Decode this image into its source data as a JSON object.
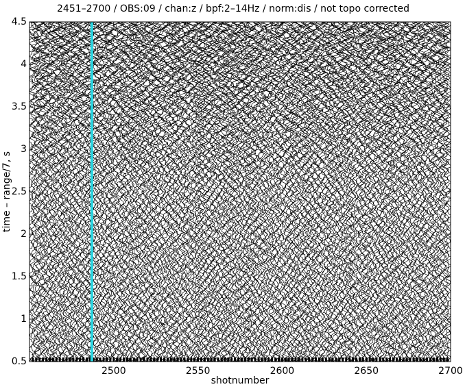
{
  "chart_data": {
    "type": "wiggle",
    "title": "2451–2700 / OBS:09 / chan:z / bpf:2–14Hz / norm:dis / not topo corrected",
    "x_label": "shotnumber",
    "y_label": "time – range/7, s",
    "xlim": [
      2450,
      2700
    ],
    "xticks": [
      2500,
      2550,
      2600,
      2650,
      2700
    ],
    "ylim": [
      0.5,
      4.5
    ],
    "yticks": [
      0.5,
      1,
      1.5,
      2,
      2.5,
      3,
      3.5,
      4,
      4.5
    ],
    "highlight": {
      "x": 2487,
      "color": "#2ad4e0"
    },
    "trace_color": "#000000"
  }
}
